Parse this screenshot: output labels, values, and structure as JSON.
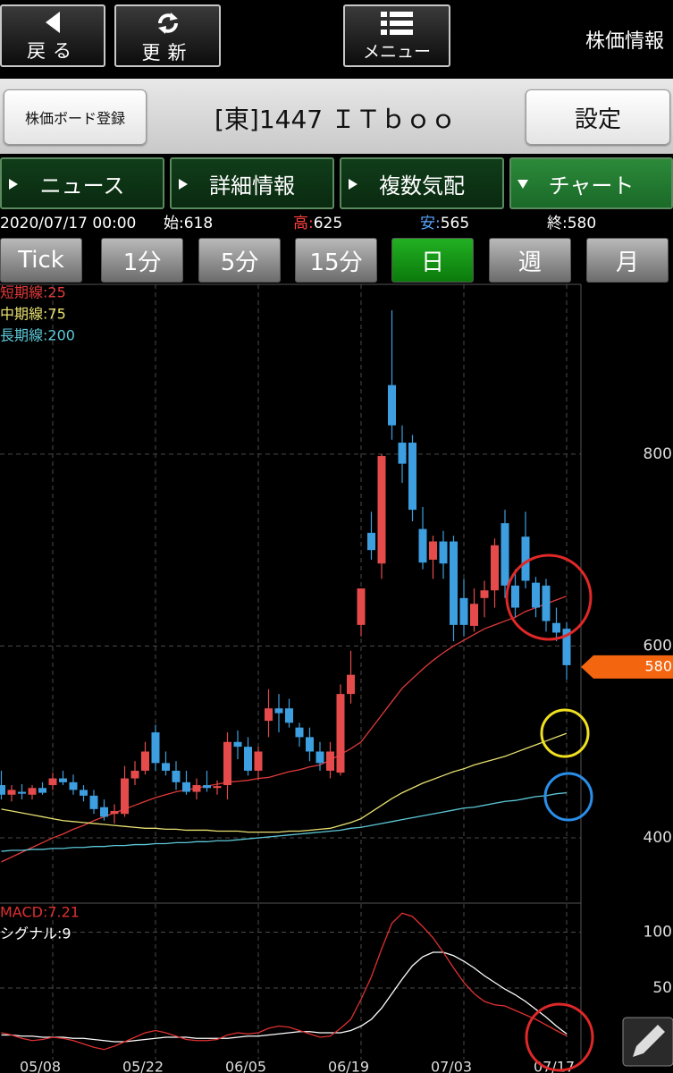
{
  "ui": {
    "nav_buttons": [
      "戻る",
      "更新",
      "メニュー"
    ],
    "app_title": "株価情報",
    "register_button": "株価ボード登録",
    "stock_title": "[東]1447 ＩＴｂｏｏ",
    "settings_button": "設定",
    "tabs": [
      "ニュース",
      "詳細情報",
      "複数気配",
      "チャート"
    ],
    "active_tab": 3,
    "info": {
      "datetime": "2020/07/17 00:00",
      "labels": [
        "始:",
        "高:",
        "安:",
        "終:"
      ]
    },
    "periods": [
      "Tick",
      "1分",
      "5分",
      "15分",
      "日",
      "週",
      "月"
    ],
    "selected_period": 4
  },
  "chart_data": {
    "type": "candlestick",
    "categories": [
      null,
      null,
      null,
      null,
      null,
      "05/08",
      null,
      null,
      null,
      null,
      null,
      null,
      null,
      null,
      null,
      "05/22",
      null,
      null,
      null,
      null,
      null,
      null,
      null,
      null,
      null,
      "06/05",
      null,
      null,
      null,
      null,
      null,
      null,
      null,
      null,
      null,
      "06/19",
      null,
      null,
      null,
      null,
      null,
      null,
      null,
      null,
      null,
      "07/03",
      null,
      null,
      null,
      null,
      null,
      null,
      null,
      null,
      null,
      "07/17"
    ],
    "open": [
      455,
      445,
      448,
      445,
      452,
      455,
      462,
      458,
      450,
      444,
      432,
      425,
      425,
      462,
      470,
      510,
      478,
      470,
      458,
      448,
      455,
      452,
      455,
      500,
      495,
      470,
      522,
      535,
      535,
      515,
      505,
      490,
      470,
      468,
      550,
      622,
      718,
      686,
      872,
      812,
      812,
      722,
      690,
      709,
      709,
      650,
      621,
      650,
      658,
      728,
      663,
      714,
      666,
      663,
      624,
      618
    ],
    "high": [
      470,
      455,
      456,
      455,
      458,
      468,
      470,
      466,
      455,
      450,
      440,
      435,
      475,
      480,
      500,
      518,
      490,
      480,
      470,
      462,
      470,
      460,
      510,
      512,
      505,
      495,
      555,
      550,
      545,
      520,
      515,
      500,
      500,
      560,
      595,
      660,
      740,
      800,
      950,
      830,
      820,
      745,
      715,
      720,
      715,
      670,
      660,
      668,
      712,
      742,
      680,
      740,
      672,
      670,
      640,
      625
    ],
    "low": [
      440,
      438,
      440,
      440,
      445,
      450,
      455,
      445,
      438,
      425,
      418,
      415,
      422,
      455,
      466,
      470,
      465,
      450,
      445,
      440,
      448,
      445,
      440,
      482,
      465,
      460,
      505,
      510,
      515,
      495,
      480,
      470,
      462,
      465,
      540,
      610,
      690,
      670,
      815,
      770,
      730,
      680,
      670,
      670,
      605,
      610,
      615,
      630,
      640,
      650,
      630,
      660,
      630,
      615,
      605,
      565
    ],
    "close": [
      445,
      450,
      446,
      452,
      447,
      462,
      458,
      450,
      444,
      430,
      422,
      428,
      462,
      470,
      490,
      478,
      470,
      458,
      448,
      455,
      452,
      454,
      500,
      495,
      470,
      490,
      535,
      530,
      520,
      505,
      490,
      478,
      490,
      550,
      570,
      660,
      700,
      798,
      830,
      790,
      742,
      687,
      709,
      686,
      622,
      622,
      644,
      658,
      705,
      663,
      640,
      668,
      640,
      626,
      614,
      580
    ],
    "up_color": "#e54b4b",
    "down_color": "#3d9ee0",
    "ylim": [
      332,
      977
    ],
    "yticks": [
      400,
      600,
      800
    ],
    "grid": true,
    "price_tag_color": "#f4650f",
    "moving_averages": [
      {
        "name": "短期線:25",
        "color": "#e03a3a",
        "values": [
          375,
          380,
          385,
          390,
          395,
          400,
          404,
          409,
          413,
          418,
          422,
          426,
          430,
          434,
          438,
          442,
          445,
          448,
          450,
          452,
          454,
          456,
          458,
          459,
          460,
          462,
          463,
          466,
          469,
          471,
          474,
          476,
          481,
          487,
          493,
          500,
          514,
          528,
          542,
          556,
          566,
          576,
          585,
          593,
          600,
          606,
          612,
          618,
          622,
          626,
          630,
          636,
          640,
          644,
          648,
          652
        ]
      },
      {
        "name": "中期線:75",
        "color": "#e8e070",
        "values": [
          430,
          428,
          426,
          424,
          422,
          420,
          418,
          417,
          416,
          415,
          414,
          413,
          412,
          411,
          410,
          410,
          409,
          409,
          408,
          408,
          408,
          407,
          407,
          407,
          406,
          406,
          406,
          406,
          407,
          407,
          408,
          409,
          410,
          413,
          416,
          420,
          427,
          434,
          441,
          447,
          452,
          457,
          461,
          465,
          469,
          472,
          476,
          479,
          482,
          485,
          489,
          493,
          497,
          501,
          505,
          509
        ]
      },
      {
        "name": "長期線:200",
        "color": "#5cc8d8",
        "values": [
          386,
          387,
          387,
          388,
          388,
          389,
          389,
          390,
          390,
          391,
          391,
          392,
          392,
          393,
          393,
          394,
          394,
          395,
          395,
          396,
          396,
          397,
          397,
          398,
          399,
          400,
          401,
          402,
          403,
          404,
          405,
          406,
          407,
          408,
          410,
          411,
          413,
          415,
          417,
          419,
          421,
          423,
          425,
          427,
          429,
          431,
          432,
          434,
          436,
          438,
          439,
          441,
          443,
          444,
          446,
          447
        ]
      }
    ],
    "macd": {
      "ylim": [
        -26,
        126
      ],
      "yticks": [
        0,
        50,
        100
      ],
      "series": [
        {
          "name": "MACD:7.21",
          "color": "#e03030",
          "values": [
            10,
            8,
            5,
            3,
            4,
            6,
            5,
            3,
            0,
            -3,
            -5,
            -2,
            2,
            6,
            10,
            12,
            10,
            7,
            4,
            3,
            3,
            4,
            8,
            10,
            9,
            10,
            14,
            16,
            15,
            12,
            9,
            6,
            7,
            14,
            22,
            40,
            60,
            85,
            108,
            117,
            114,
            105,
            95,
            82,
            68,
            55,
            45,
            38,
            35,
            34,
            30,
            26,
            22,
            17,
            12,
            7.21
          ]
        },
        {
          "name": "シグナル:9",
          "color": "#ffffff",
          "values": [
            8,
            8,
            7,
            7,
            6,
            6,
            6,
            5,
            5,
            4,
            3,
            2,
            2,
            3,
            4,
            5,
            6,
            6,
            6,
            5,
            5,
            5,
            5,
            6,
            7,
            7,
            8,
            9,
            10,
            11,
            11,
            10,
            10,
            10,
            12,
            16,
            22,
            32,
            45,
            58,
            70,
            78,
            82,
            82,
            79,
            74,
            68,
            61,
            55,
            49,
            44,
            38,
            31,
            24,
            16,
            9
          ]
        }
      ]
    }
  }
}
